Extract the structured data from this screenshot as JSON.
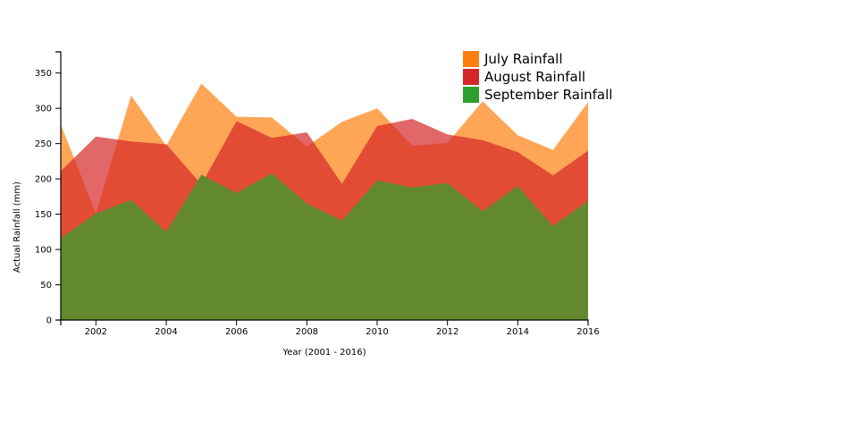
{
  "chart_data": {
    "type": "area",
    "title": "",
    "xlabel": "Year (2001 - 2016)",
    "ylabel": "Actual Rainfall (mm)",
    "xlim": [
      2001,
      2016
    ],
    "ylim": [
      0,
      380
    ],
    "x_ticks": [
      2002,
      2004,
      2006,
      2008,
      2010,
      2012,
      2014,
      2016
    ],
    "y_ticks": [
      0,
      50,
      100,
      150,
      200,
      250,
      300,
      350
    ],
    "grid": false,
    "legend_position": "top-right",
    "x": [
      2001,
      2002,
      2003,
      2004,
      2005,
      2006,
      2007,
      2008,
      2009,
      2010,
      2011,
      2012,
      2013,
      2014,
      2015,
      2016
    ],
    "series": [
      {
        "name": "July Rainfall",
        "color": "#ff7f0e",
        "values": [
          277,
          151,
          318,
          247,
          335,
          288,
          287,
          246,
          281,
          300,
          247,
          251,
          310,
          262,
          241,
          309
        ]
      },
      {
        "name": "August Rainfall",
        "color": "#d62728",
        "values": [
          211,
          260,
          253,
          249,
          192,
          282,
          258,
          266,
          193,
          275,
          285,
          263,
          255,
          238,
          205,
          240
        ]
      },
      {
        "name": "September Rainfall",
        "color": "#2ca02c",
        "values": [
          116,
          151,
          170,
          125,
          206,
          180,
          208,
          165,
          141,
          198,
          188,
          194,
          154,
          190,
          133,
          169
        ]
      }
    ]
  }
}
